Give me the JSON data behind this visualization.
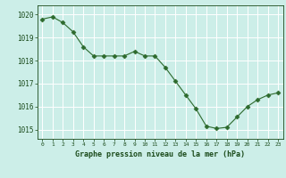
{
  "hours": [
    0,
    1,
    2,
    3,
    4,
    5,
    6,
    7,
    8,
    9,
    10,
    11,
    12,
    13,
    14,
    15,
    16,
    17,
    18,
    19,
    20,
    21,
    22,
    23
  ],
  "pressure": [
    1019.8,
    1019.9,
    1019.65,
    1019.25,
    1018.6,
    1018.2,
    1018.2,
    1018.2,
    1018.2,
    1018.4,
    1018.2,
    1018.2,
    1017.7,
    1017.1,
    1016.5,
    1015.9,
    1015.15,
    1015.05,
    1015.1,
    1015.55,
    1016.0,
    1016.3,
    1016.5,
    1016.6
  ],
  "line_color": "#2d6a2d",
  "marker": "D",
  "markersize": 2.5,
  "bg_color": "#cceee8",
  "grid_color": "#ffffff",
  "xlabel": "Graphe pression niveau de la mer (hPa)",
  "xlabel_color": "#1a4a1a",
  "tick_color": "#1a4a1a",
  "ytick_labels": [
    "1015",
    "1016",
    "1017",
    "1018",
    "1019",
    "1020"
  ],
  "ytick_values": [
    1015,
    1016,
    1017,
    1018,
    1019,
    1020
  ],
  "ylim": [
    1014.6,
    1020.4
  ],
  "xlim": [
    -0.5,
    23.5
  ]
}
